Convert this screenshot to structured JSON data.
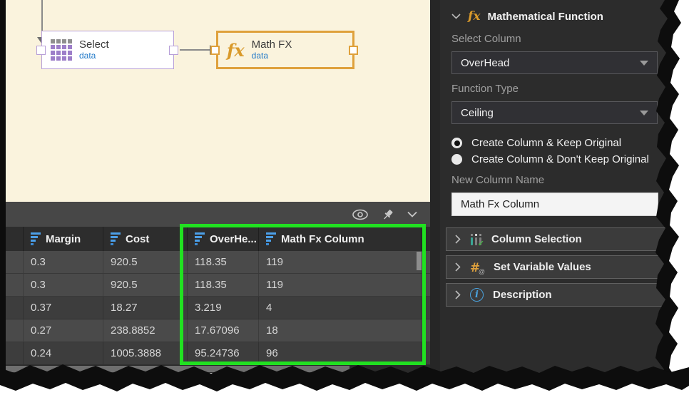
{
  "canvas": {
    "nodes": [
      {
        "title": "Select",
        "subtitle": "data"
      },
      {
        "title": "Math FX",
        "subtitle": "data",
        "icon_text": "fx"
      }
    ]
  },
  "preview": {
    "table": {
      "columns": [
        "Margin",
        "Cost",
        "OverHe...",
        "Math Fx Column"
      ],
      "rows": [
        [
          "0.3",
          "920.5",
          "118.35",
          "119"
        ],
        [
          "0.3",
          "920.5",
          "118.35",
          "119"
        ],
        [
          "0.37",
          "18.27",
          "3.219",
          "4"
        ],
        [
          "0.27",
          "238.8852",
          "17.67096",
          "18"
        ],
        [
          "0.24",
          "1005.3888",
          "95.24736",
          "96"
        ]
      ]
    }
  },
  "panel": {
    "title": "Mathematical Function",
    "title_icon": "fx",
    "select_column_label": "Select Column",
    "select_column_value": "OverHead",
    "function_type_label": "Function Type",
    "function_type_value": "Ceiling",
    "radio_options": [
      {
        "label": "Create Column & Keep Original",
        "selected": true
      },
      {
        "label": "Create Column & Don't Keep Original",
        "selected": false
      }
    ],
    "new_column_label": "New Column Name",
    "new_column_value": "Math Fx Column",
    "sections": [
      {
        "label": "Column Selection"
      },
      {
        "label": "Set Variable Values"
      },
      {
        "label": "Description"
      }
    ],
    "variable_icon_text": "#",
    "variable_icon_sub": "@",
    "info_icon_text": "i",
    "columns_icon_check": "✓"
  },
  "colors": {
    "canvas_bg": "#FAF3DD",
    "node_purple": "#B79FD8",
    "accent_orange": "#DFA13C",
    "data_blue": "#1F78C8",
    "highlight_green": "#21E121",
    "header_icon_blue": "#4C9FE8",
    "panel_bg": "#2c2c2c"
  }
}
